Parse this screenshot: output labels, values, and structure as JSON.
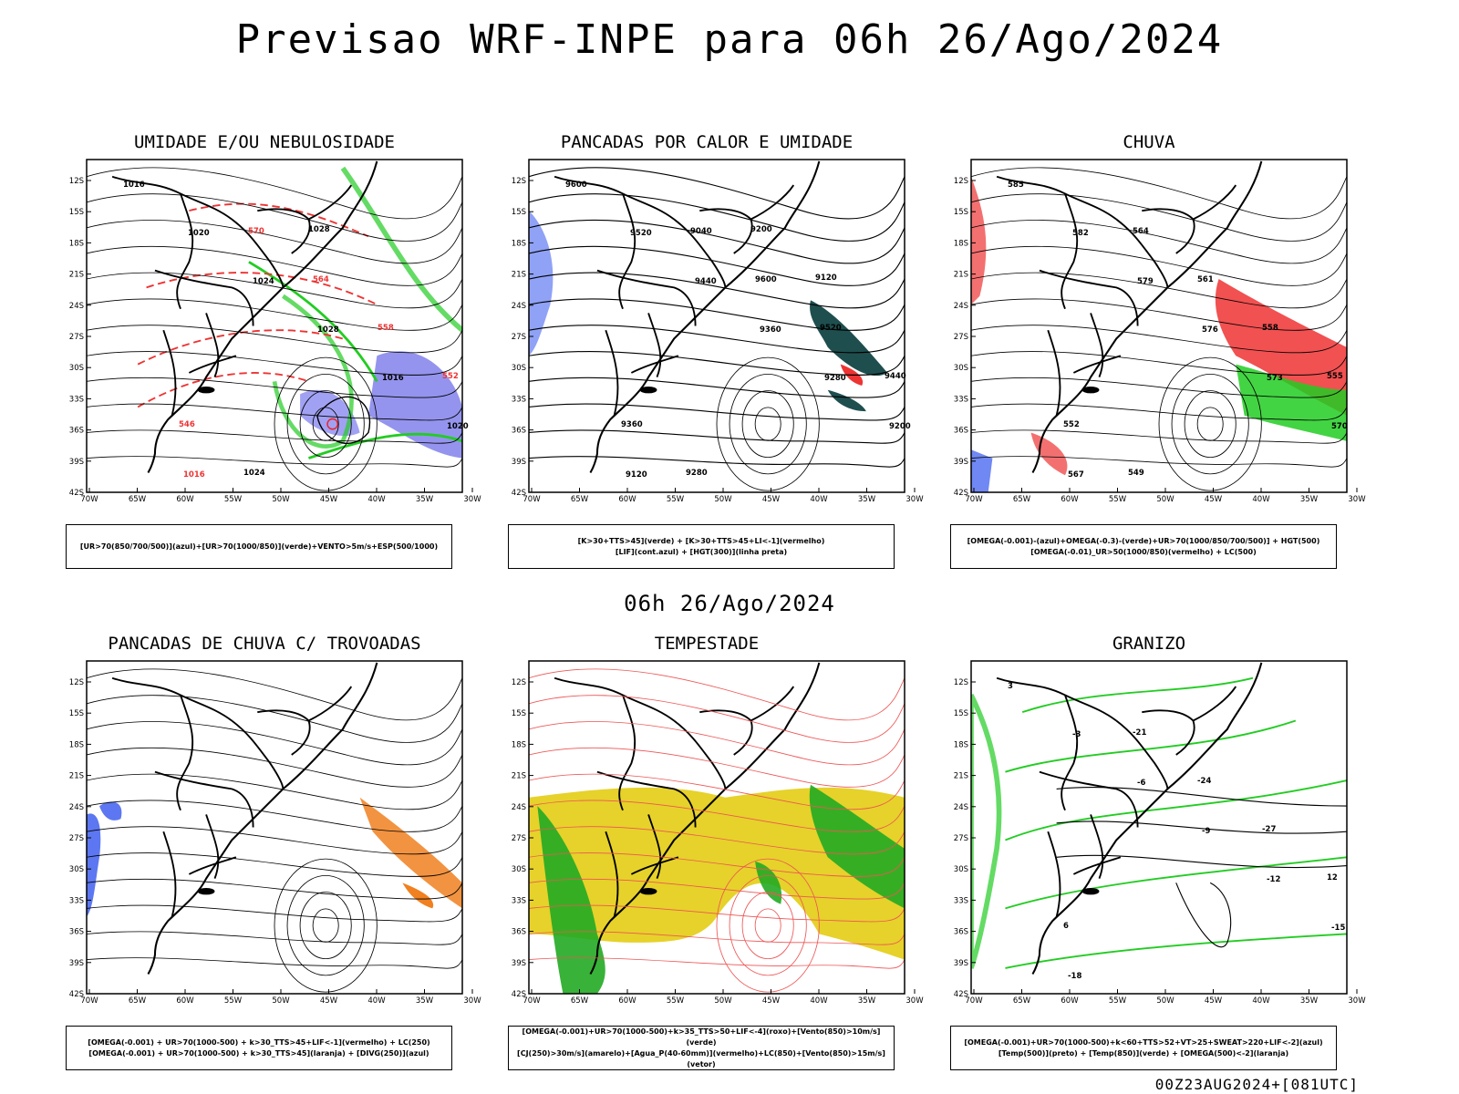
{
  "title": "Previsao WRF-INPE  para 06h 26/Ago/2024",
  "mid_date": "06h 26/Ago/2024",
  "footer": "00Z23AUG2024+[081UTC]",
  "axes": {
    "lat_labels": [
      "12S",
      "15S",
      "18S",
      "21S",
      "24S",
      "27S",
      "30S",
      "33S",
      "36S",
      "39S",
      "42S"
    ],
    "lon_labels": [
      "70W",
      "65W",
      "60W",
      "55W",
      "50W",
      "45W",
      "40W",
      "35W",
      "30W"
    ]
  },
  "panels": [
    {
      "id": "umidade",
      "title": "UMIDADE E/OU NEBULOSIDADE",
      "legend": [
        "[UR>70(850/700/500)](azul)+[UR>70(1000/850)](verde)+VENTO>5m/s+ESP(500/1000)"
      ],
      "labels": [
        "1016",
        "1020",
        "1024",
        "1028",
        "1016",
        "1020",
        "1016",
        "570",
        "564",
        "558",
        "552",
        "546",
        "1024",
        "1028"
      ]
    },
    {
      "id": "calor",
      "title": "PANCADAS POR CALOR E UMIDADE",
      "legend": [
        "[K>30+TTS>45](verde) + [K>30+TTS>45+LI<-1](vermelho)",
        "[LIF](cont.azul) + [HGT(300)](linha preta)"
      ],
      "labels": [
        "9600",
        "9520",
        "9440",
        "9360",
        "9280",
        "9200",
        "9120",
        "9040",
        "9600",
        "9520",
        "9440",
        "9360",
        "9280",
        "9200",
        "9120"
      ]
    },
    {
      "id": "chuva",
      "title": "CHUVA",
      "legend": [
        "[OMEGA(-0.001)-(azul)+OMEGA(-0.3)-(verde)+UR>70(1000/850/700/500)] + HGT(500)",
        "[OMEGA(-0.01)_UR>50(1000/850)(vermelho) + LC(500)"
      ],
      "labels": [
        "585",
        "582",
        "579",
        "576",
        "573",
        "570",
        "567",
        "564",
        "561",
        "558",
        "555",
        "552",
        "549"
      ]
    },
    {
      "id": "trovoadas",
      "title": "PANCADAS DE CHUVA C/ TROVOADAS",
      "legend": [
        "[OMEGA(-0.001) + UR>70(1000-500) + k>30_TTS>45+LIF<-1](vermelho) + LC(250)",
        "[OMEGA(-0.001) + UR>70(1000-500) + k>30_TTS>45](laranja) + [DIVG(250)](azul)"
      ],
      "labels": []
    },
    {
      "id": "tempestade",
      "title": "TEMPESTADE",
      "legend": [
        "[OMEGA(-0.001)+UR>70(1000-500)+k>35_TTS>50+LIF<-4](roxo)+[Vento(850)>10m/s](verde)",
        "[CJ(250)>30m/s](amarelo)+[Agua_P(40-60mm)](vermelho)+LC(850)+[Vento(850)>15m/s](vetor)"
      ],
      "labels": []
    },
    {
      "id": "granizo",
      "title": "GRANIZO",
      "legend": [
        "[OMEGA(-0.001)+UR>70(1000-500)+k<60+TTS>52+VT>25+SWEAT>220+LIF<-2](azul)",
        "[Temp(500)](preto) + [Temp(850)](verde) + [OMEGA(500)<-2](laranja)"
      ],
      "labels": [
        "3",
        "-3",
        "-6",
        "-9",
        "-12",
        "-15",
        "-18",
        "-21",
        "-24",
        "-27",
        "12",
        "6"
      ]
    }
  ]
}
